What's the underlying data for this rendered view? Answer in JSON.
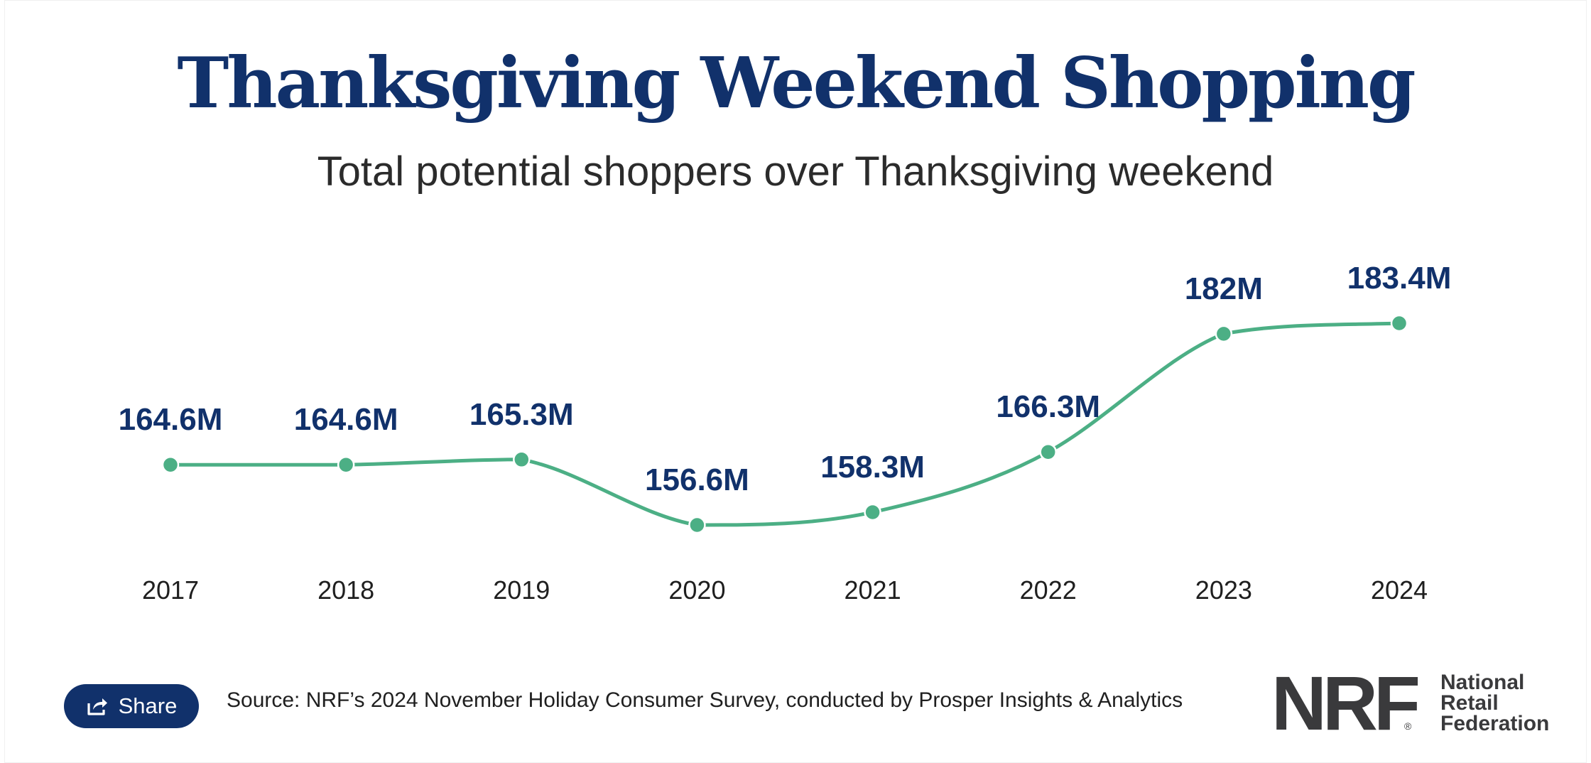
{
  "chart_data": {
    "type": "line",
    "title": "Thanksgiving Weekend Shopping",
    "subtitle": "Total potential shoppers over Thanksgiving weekend",
    "categories": [
      "2017",
      "2018",
      "2019",
      "2020",
      "2021",
      "2022",
      "2023",
      "2024"
    ],
    "values": [
      164.6,
      164.6,
      165.3,
      156.6,
      158.3,
      166.3,
      182,
      183.4
    ],
    "value_labels": [
      "164.6M",
      "164.6M",
      "165.3M",
      "156.6M",
      "158.3M",
      "166.3M",
      "182M",
      "183.4M"
    ],
    "unit": "M",
    "ylim": [
      150,
      190
    ],
    "grid": false,
    "legend": "none",
    "line_color": "#4caf85",
    "label_color": "#11316b"
  },
  "share": {
    "label": "Share",
    "icon": "share-icon"
  },
  "source": "Source: NRF’s 2024 November Holiday Consumer Survey, conducted by Prosper Insights & Analytics",
  "logo": {
    "mark": "NRF",
    "registered": "®",
    "name_lines": [
      "National",
      "Retail",
      "Federation"
    ],
    "color": "#3a3a3c"
  },
  "colors": {
    "title": "#11316b",
    "accent": "#4caf85",
    "button": "#11316b"
  }
}
